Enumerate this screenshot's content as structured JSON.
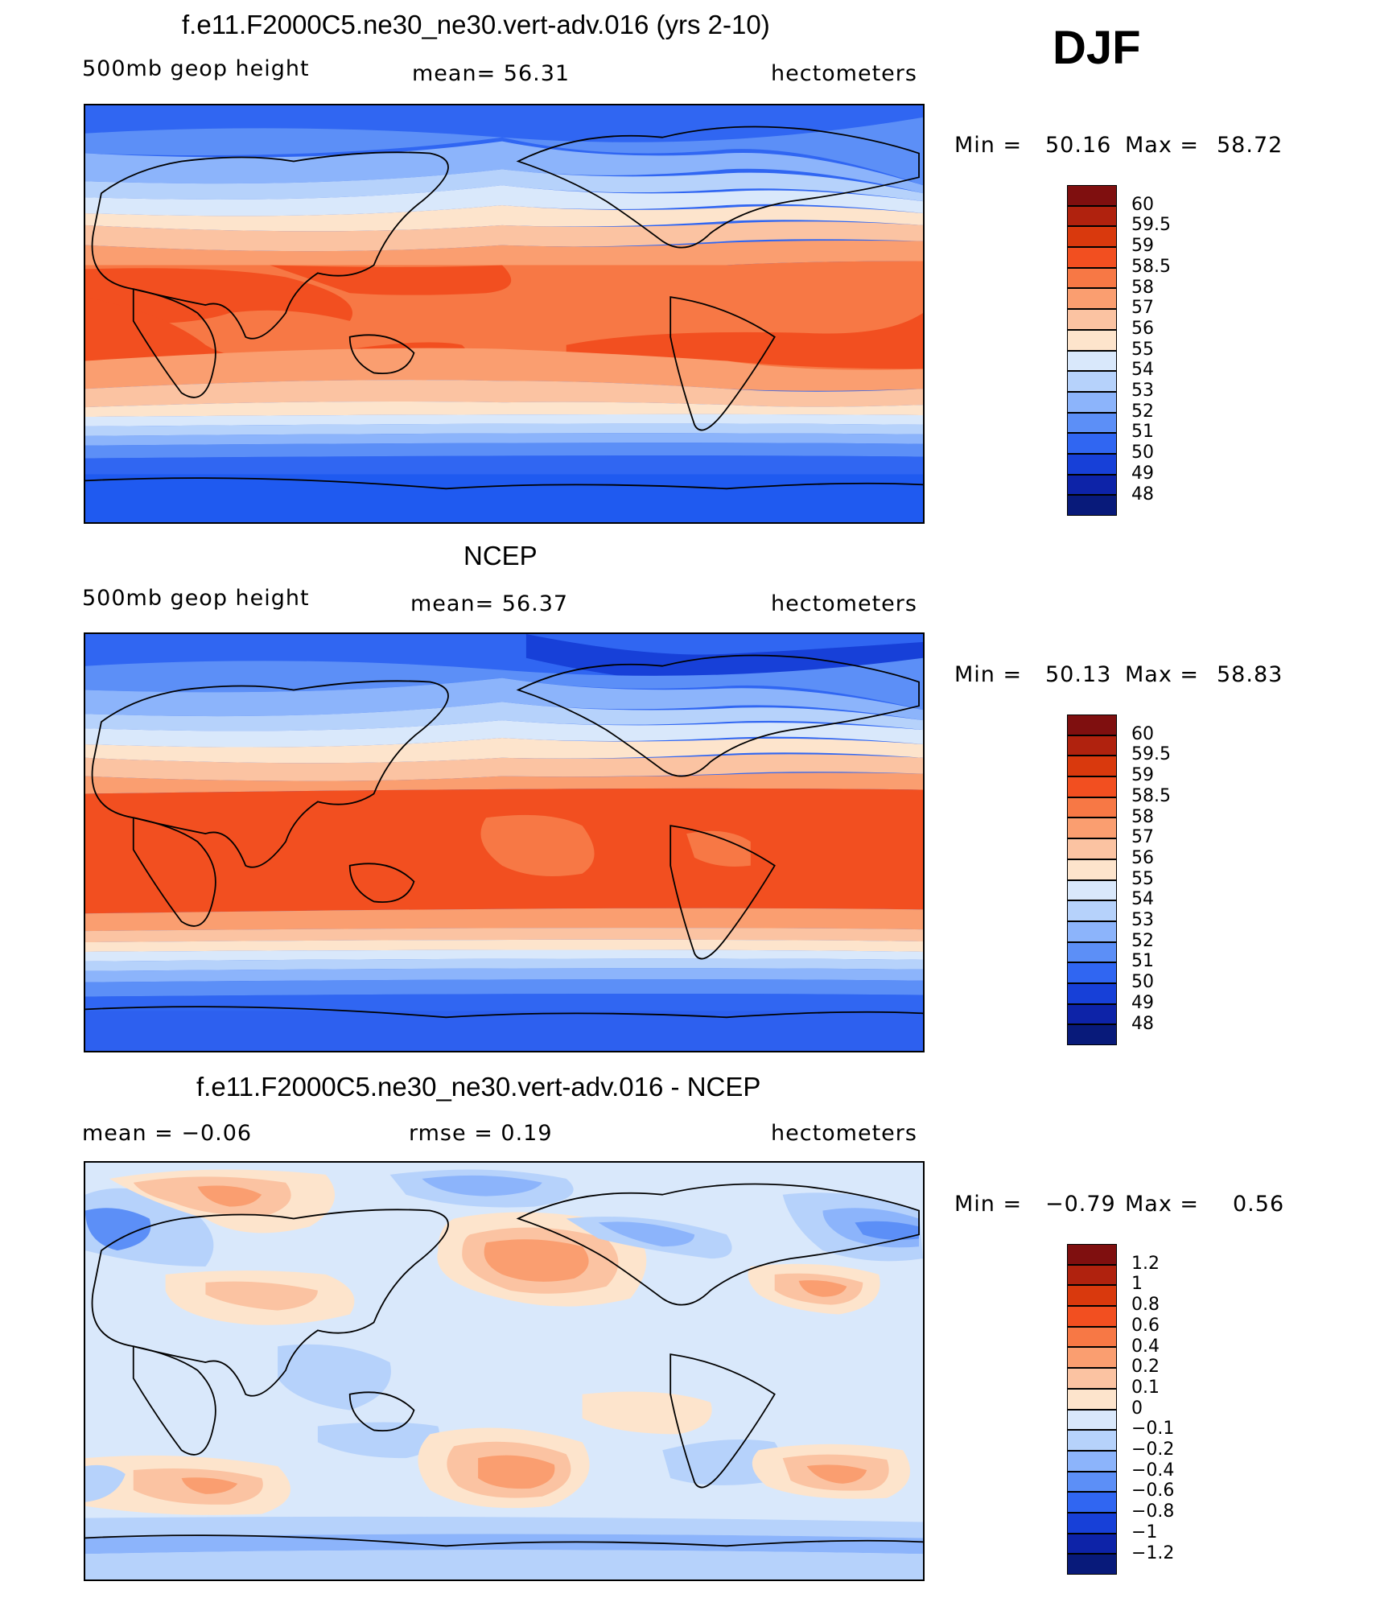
{
  "season": "DJF",
  "panels": [
    {
      "id": "model",
      "title": "f.e11.F2000C5.ne30_ne30.vert-adv.016 (yrs 2-10)",
      "left_label": "500mb  geop  height",
      "center_label": "mean=   56.31",
      "units": "hectometers",
      "min_label": "Min  =",
      "min_value": "50.16",
      "max_label": "Max  =",
      "max_value": "58.72",
      "colorbar_labels": [
        "60",
        "59.5",
        "59",
        "58.5",
        "58",
        "57",
        "56",
        "55",
        "54",
        "53",
        "52",
        "51",
        "50",
        "49",
        "48"
      ],
      "colorbar_colors": [
        "#7f0f0f",
        "#b0220e",
        "#d9390d",
        "#f24f20",
        "#f77845",
        "#fa9e70",
        "#fbc3a2",
        "#fde4cc",
        "#d9e8fb",
        "#b6d2fb",
        "#8cb4fb",
        "#5c8ff7",
        "#3066f2",
        "#1740d8",
        "#0d23a8",
        "#081a7a"
      ]
    },
    {
      "id": "obs",
      "title": "NCEP",
      "left_label": "500mb  geop  height",
      "center_label": "mean=   56.37",
      "units": "hectometers",
      "min_label": "Min  =",
      "min_value": "50.13",
      "max_label": "Max  =",
      "max_value": "58.83",
      "colorbar_labels": [
        "60",
        "59.5",
        "59",
        "58.5",
        "58",
        "57",
        "56",
        "55",
        "54",
        "53",
        "52",
        "51",
        "50",
        "49",
        "48"
      ],
      "colorbar_colors": [
        "#7f0f0f",
        "#b0220e",
        "#d9390d",
        "#f24f20",
        "#f77845",
        "#fa9e70",
        "#fbc3a2",
        "#fde4cc",
        "#d9e8fb",
        "#b6d2fb",
        "#8cb4fb",
        "#5c8ff7",
        "#3066f2",
        "#1740d8",
        "#0d23a8",
        "#081a7a"
      ]
    },
    {
      "id": "diff",
      "title": "f.e11.F2000C5.ne30_ne30.vert-adv.016 - NCEP",
      "left_label": "mean  =   −0.06",
      "center_label": "rmse  =    0.19",
      "units": "hectometers",
      "min_label": "Min  =",
      "min_value": "−0.79",
      "max_label": "Max  =",
      "max_value": "0.56",
      "colorbar_labels": [
        "1.2",
        "1",
        "0.8",
        "0.6",
        "0.4",
        "0.2",
        "0.1",
        "0",
        "−0.1",
        "−0.2",
        "−0.4",
        "−0.6",
        "−0.8",
        "−1",
        "−1.2"
      ],
      "colorbar_colors": [
        "#7f0f0f",
        "#b0220e",
        "#d9390d",
        "#f24f20",
        "#f77845",
        "#fa9e70",
        "#fbc3a2",
        "#fde4cc",
        "#d9e8fb",
        "#b6d2fb",
        "#8cb4fb",
        "#5c8ff7",
        "#3066f2",
        "#1740d8",
        "#0d23a8",
        "#081a7a"
      ]
    }
  ]
}
